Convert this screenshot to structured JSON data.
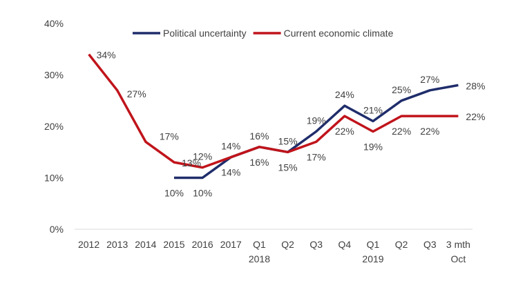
{
  "chart_data": {
    "type": "line",
    "title": "",
    "xlabel": "",
    "ylabel": "",
    "ylim": [
      0,
      40
    ],
    "yticks": [
      0,
      10,
      20,
      30,
      40
    ],
    "ytick_labels": [
      "0%",
      "10%",
      "20%",
      "30%",
      "40%"
    ],
    "grid": false,
    "legend_position": "top",
    "categories": [
      [
        "2012"
      ],
      [
        "2013"
      ],
      [
        "2014"
      ],
      [
        "2015"
      ],
      [
        "2016"
      ],
      [
        "2017"
      ],
      [
        "Q1",
        "2018"
      ],
      [
        "Q2"
      ],
      [
        "Q3"
      ],
      [
        "Q4"
      ],
      [
        "Q1",
        "2019"
      ],
      [
        "Q2"
      ],
      [
        "Q3"
      ],
      [
        "3 mth",
        "Oct"
      ]
    ],
    "series": [
      {
        "name": "Political uncertainty",
        "color": "#1f2d6b",
        "values": [
          null,
          null,
          null,
          10,
          10,
          14,
          16,
          15,
          19,
          24,
          21,
          25,
          27,
          28
        ],
        "labels": [
          null,
          null,
          null,
          "10%",
          "10%",
          null,
          null,
          "15%",
          "19%",
          "24%",
          "21%",
          "25%",
          "27%",
          "28%"
        ],
        "label_pos": [
          null,
          null,
          null,
          "below",
          "below",
          null,
          null,
          "above",
          "above",
          "above",
          "above",
          "above",
          "above",
          "right"
        ]
      },
      {
        "name": "Current economic climate",
        "color": "#c0141b",
        "values": [
          34,
          27,
          17,
          13,
          12,
          14,
          16,
          15,
          17,
          22,
          19,
          22,
          22,
          22
        ],
        "labels": [
          "34%",
          "27%",
          "17%",
          "13%",
          "12%",
          "14%",
          "16%",
          "15%",
          "17%",
          "22%",
          "19%",
          "22%",
          "22%",
          "22%"
        ],
        "label_pos": [
          "right",
          "below-right",
          "above-right",
          "right",
          "above",
          "dual",
          "dual",
          "below",
          "below",
          "below",
          "below",
          "below",
          "below",
          "right"
        ]
      }
    ],
    "shared_labels": {
      "5": {
        "above": "14%",
        "below": "14%"
      },
      "6": {
        "above": "16%",
        "below": "16%"
      }
    }
  }
}
